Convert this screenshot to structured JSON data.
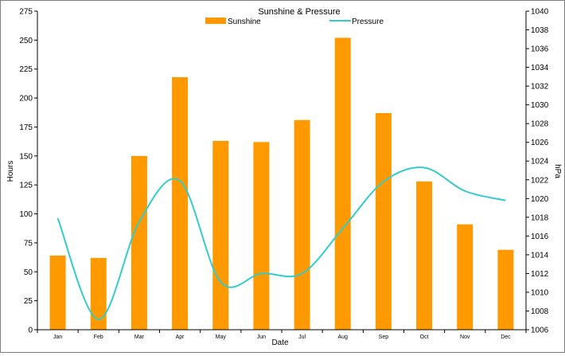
{
  "chart_data": {
    "type": "bar",
    "title": "Sunshine & Pressure",
    "xlabel": "Date",
    "ylabel": "Hours",
    "y2label": "hPa",
    "categories": [
      "Jan",
      "Feb",
      "Mar",
      "Apr",
      "May",
      "Jun",
      "Jul",
      "Aug",
      "Sep",
      "Oct",
      "Nov",
      "Dec"
    ],
    "ylim": [
      0,
      275
    ],
    "yticks": [
      0,
      25,
      50,
      75,
      100,
      125,
      150,
      175,
      200,
      225,
      250,
      275
    ],
    "y2lim": [
      1006,
      1040
    ],
    "y2ticks": [
      1006,
      1008,
      1010,
      1012,
      1014,
      1016,
      1018,
      1020,
      1022,
      1024,
      1026,
      1028,
      1030,
      1032,
      1034,
      1036,
      1038,
      1040
    ],
    "grid": false,
    "legend": "top-center",
    "series": [
      {
        "name": "Sunshine",
        "type": "bar",
        "axis": "left",
        "color": "#ff9900",
        "values": [
          64,
          62,
          150,
          218,
          163,
          162,
          181,
          252,
          187,
          128,
          91,
          69
        ]
      },
      {
        "name": "Pressure",
        "type": "line",
        "axis": "right",
        "color": "#33cccc",
        "values": [
          1017.9,
          1007.1,
          1017.5,
          1021.9,
          1011.1,
          1012.0,
          1012.0,
          1016.8,
          1021.8,
          1023.3,
          1020.8,
          1019.8
        ]
      }
    ]
  }
}
